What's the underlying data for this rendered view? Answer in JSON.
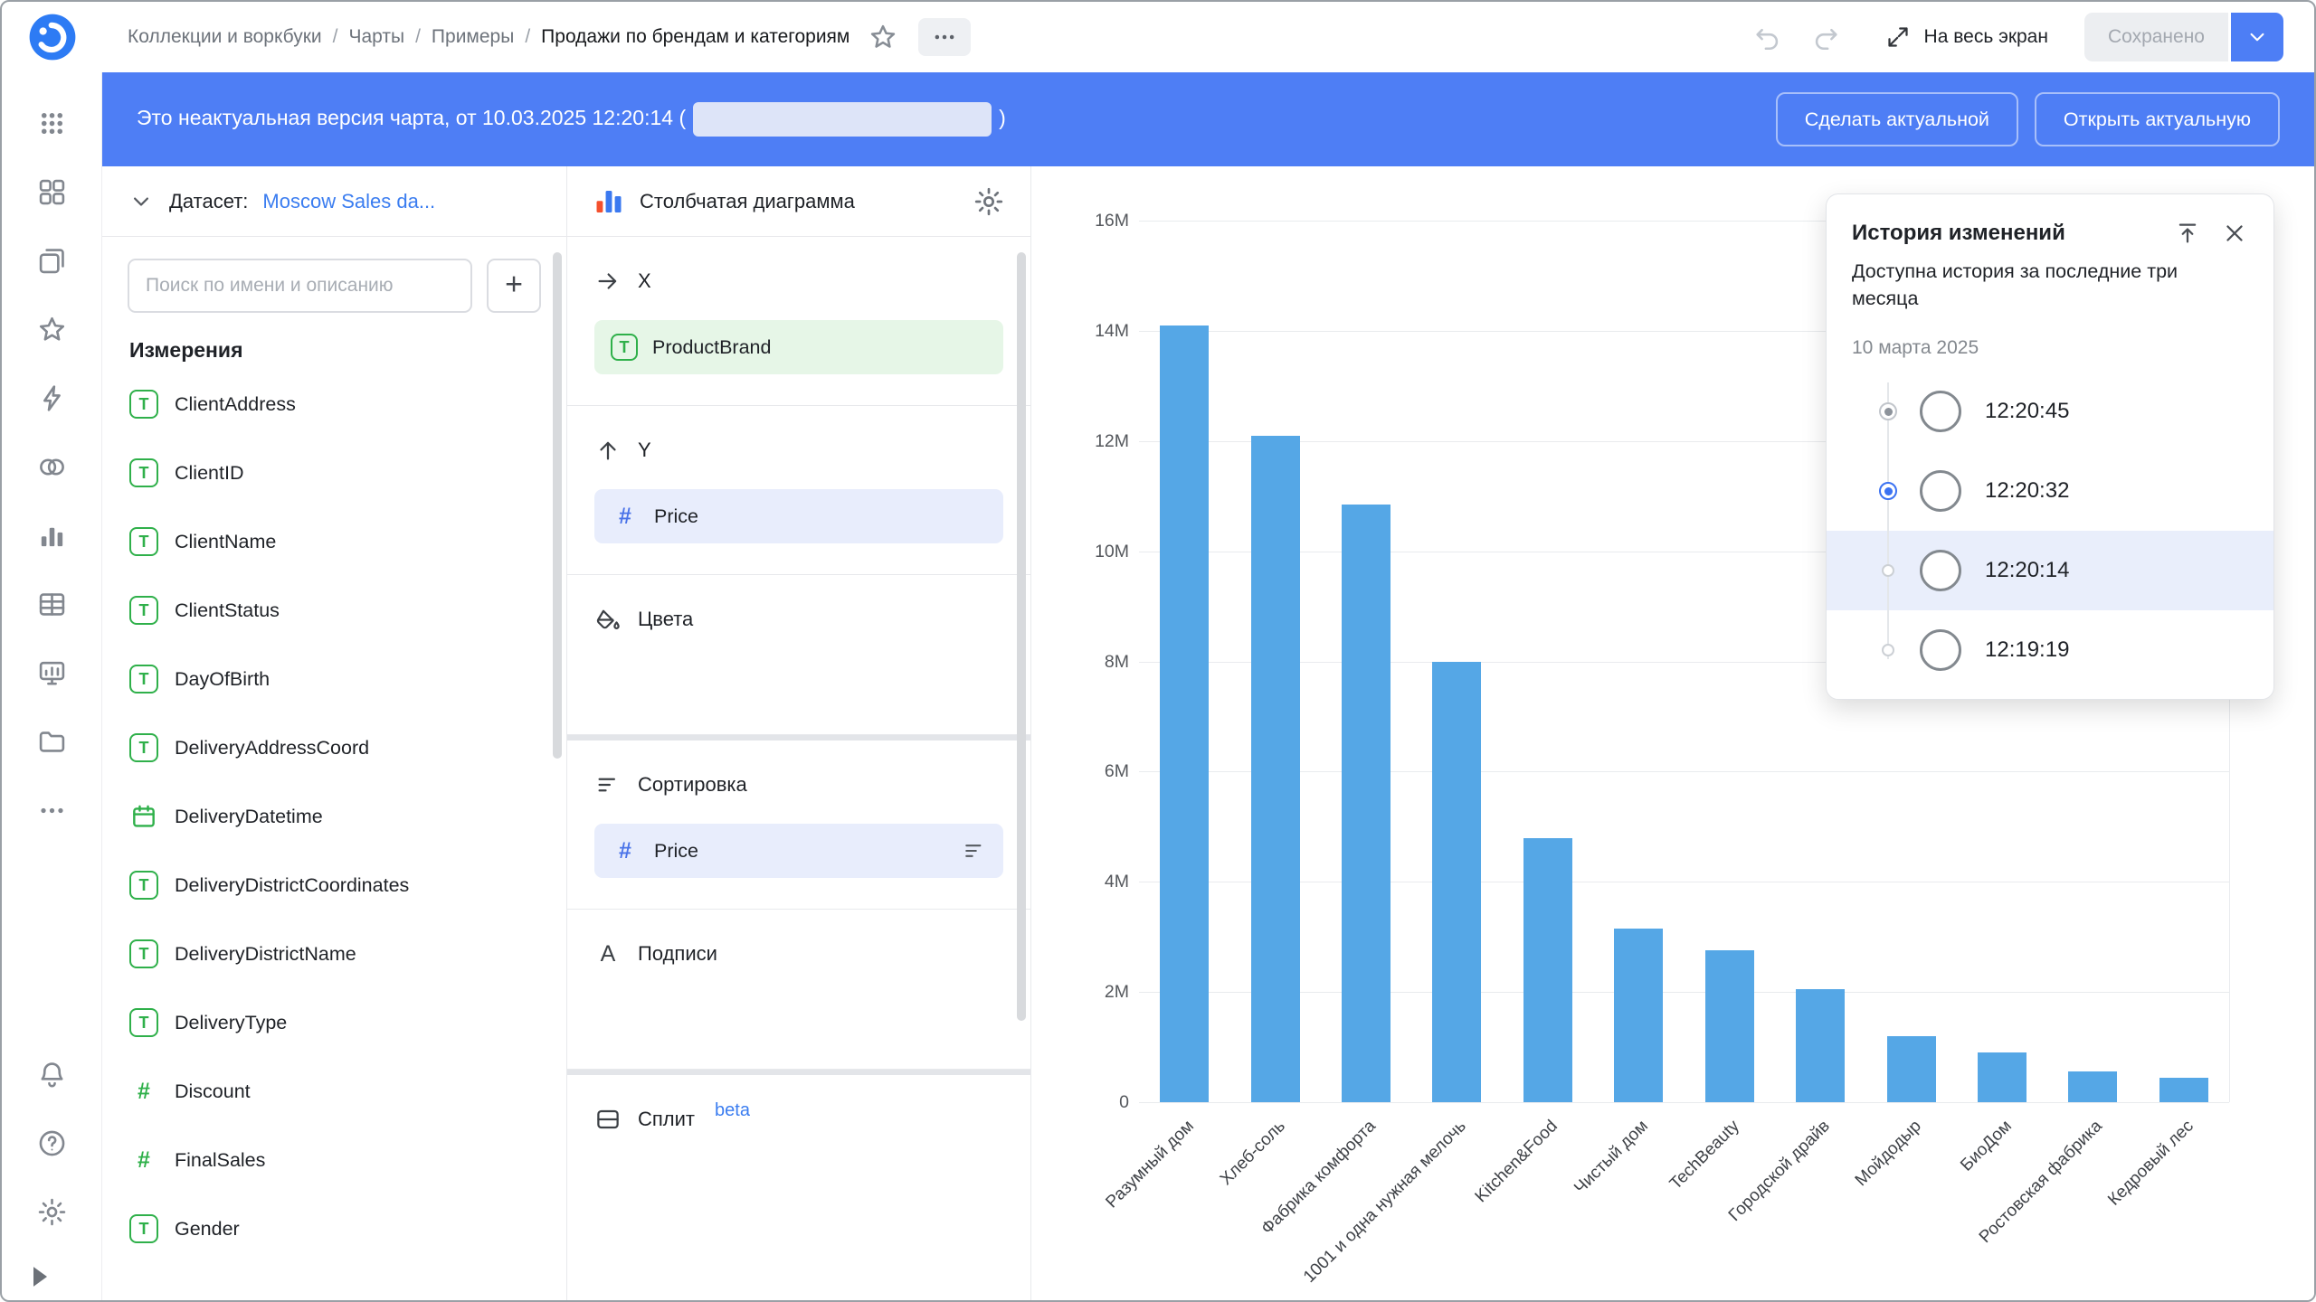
{
  "header": {
    "breadcrumbs": [
      "Коллекции и воркбуки",
      "Чарты",
      "Примеры",
      "Продажи по брендам и категориям"
    ],
    "fullscreen_label": "На весь экран",
    "saved_label": "Сохранено"
  },
  "banner": {
    "text_before": "Это неактуальная версия чарта, от 10.03.2025 12:20:14 (",
    "text_after": ")",
    "make_actual_label": "Сделать актуальной",
    "open_actual_label": "Открыть актуальную"
  },
  "sidebar": {
    "items": [
      {
        "icon": "grid-dots"
      },
      {
        "icon": "four-squares"
      },
      {
        "icon": "layers"
      },
      {
        "icon": "star"
      },
      {
        "icon": "lightning"
      },
      {
        "icon": "two-circles"
      },
      {
        "icon": "bar-chart"
      },
      {
        "icon": "table"
      },
      {
        "icon": "monitor"
      },
      {
        "icon": "folder"
      },
      {
        "icon": "ellipsis"
      }
    ],
    "bottom_items": [
      {
        "icon": "bell"
      },
      {
        "icon": "question"
      },
      {
        "icon": "gear"
      }
    ]
  },
  "dataset_panel": {
    "label": "Датасет:",
    "dataset_name": "Moscow Sales da...",
    "search_placeholder": "Поиск по имени и описанию",
    "section_title": "Измерения",
    "fields": [
      {
        "name": "ClientAddress",
        "type": "text"
      },
      {
        "name": "ClientID",
        "type": "text"
      },
      {
        "name": "ClientName",
        "type": "text"
      },
      {
        "name": "ClientStatus",
        "type": "text"
      },
      {
        "name": "DayOfBirth",
        "type": "text"
      },
      {
        "name": "DeliveryAddressCoord",
        "type": "text"
      },
      {
        "name": "DeliveryDatetime",
        "type": "date"
      },
      {
        "name": "DeliveryDistrictCoordinates",
        "type": "text"
      },
      {
        "name": "DeliveryDistrictName",
        "type": "text"
      },
      {
        "name": "DeliveryType",
        "type": "text"
      },
      {
        "name": "Discount",
        "type": "number"
      },
      {
        "name": "FinalSales",
        "type": "number"
      },
      {
        "name": "Gender",
        "type": "text"
      }
    ]
  },
  "config_panel": {
    "chart_type_label": "Столбчатая диаграмма",
    "x_label": "X",
    "x_field": "ProductBrand",
    "y_label": "Y",
    "y_field": "Price",
    "colors_label": "Цвета",
    "sort_label": "Сортировка",
    "sort_field": "Price",
    "labels_label": "Подписи",
    "split_label": "Сплит",
    "split_badge": "beta"
  },
  "history_panel": {
    "title": "История изменений",
    "description": "Доступна история за последние три месяца",
    "date_header": "10 марта 2025",
    "entries": [
      {
        "time": "12:20:45",
        "radio": "dot-gray",
        "highlighted": false
      },
      {
        "time": "12:20:32",
        "radio": "dot-blue",
        "highlighted": false
      },
      {
        "time": "12:20:14",
        "radio": "empty",
        "highlighted": true
      },
      {
        "time": "12:19:19",
        "radio": "empty",
        "highlighted": false
      }
    ]
  },
  "chart_data": {
    "type": "bar",
    "categories": [
      "Разумный дом",
      "Хлеб-соль",
      "Фабрика комфорта",
      "1001 и одна нужная мелочь",
      "Kitchen&Food",
      "Чистый дом",
      "TechBeauty",
      "Городской драйв",
      "Мойдодыр",
      "БиоДом",
      "Ростовская фабрика",
      "Кедровый лес"
    ],
    "values_millions": [
      14.1,
      12.1,
      10.85,
      8.0,
      4.8,
      3.15,
      2.75,
      2.05,
      1.2,
      0.9,
      0.55,
      0.45
    ],
    "title": "",
    "xlabel": "",
    "ylabel": "",
    "ylim_millions": [
      0,
      16
    ],
    "y_ticks": [
      {
        "value_millions": 0,
        "label": "0"
      },
      {
        "value_millions": 2,
        "label": "2M"
      },
      {
        "value_millions": 4,
        "label": "4M"
      },
      {
        "value_millions": 6,
        "label": "6M"
      },
      {
        "value_millions": 8,
        "label": "8M"
      },
      {
        "value_millions": 10,
        "label": "10M"
      },
      {
        "value_millions": 12,
        "label": "12M"
      },
      {
        "value_millions": 14,
        "label": "14M"
      },
      {
        "value_millions": 16,
        "label": "16M"
      }
    ],
    "bar_color": "#55a7e6",
    "grid": "horizontal",
    "legend": "none",
    "x_label_rotation_deg": -45
  }
}
